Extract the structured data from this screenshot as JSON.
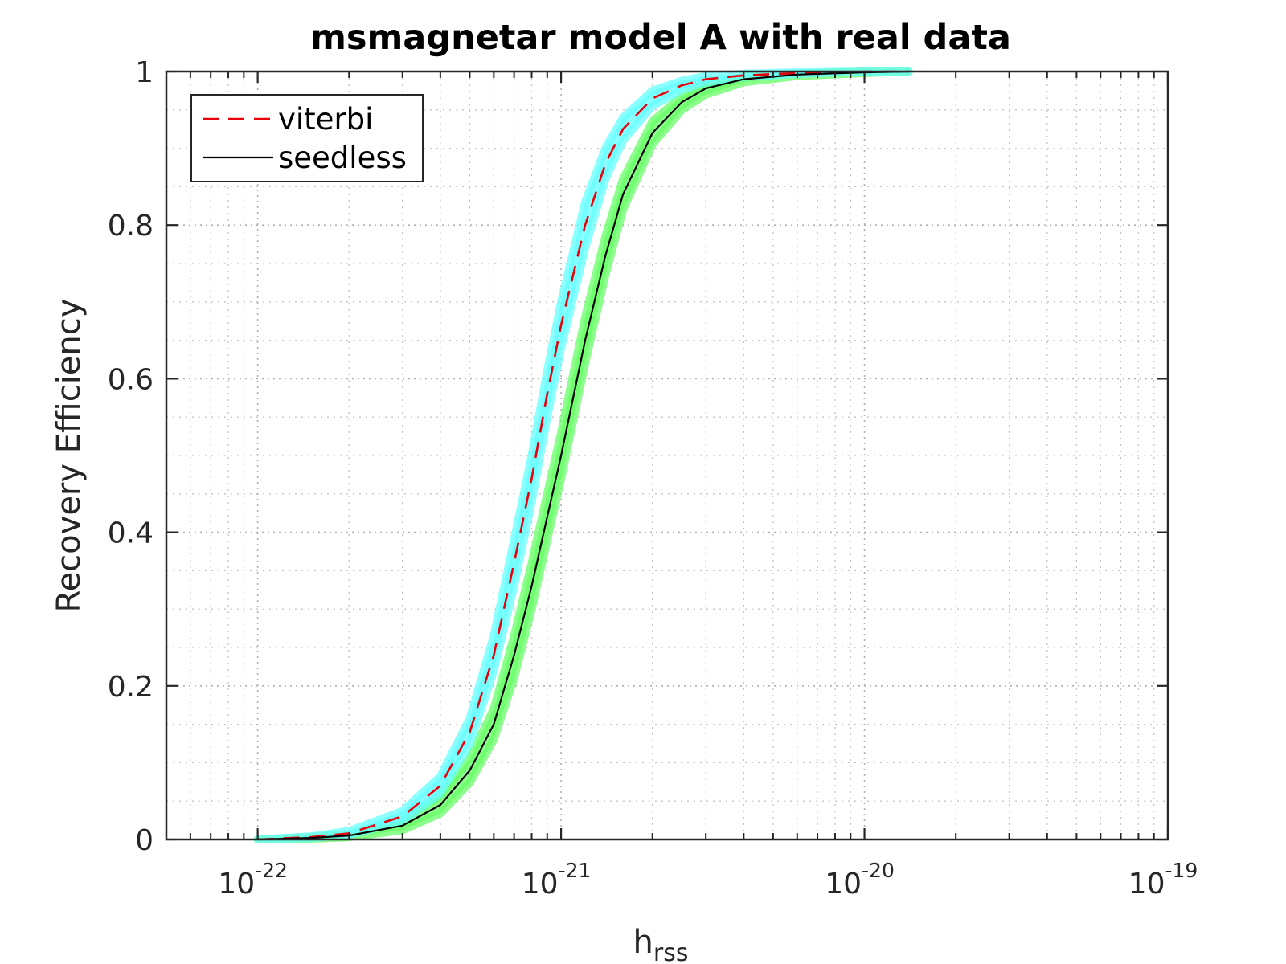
{
  "chart_data": {
    "type": "line",
    "title": "msmagnetar model A with real data",
    "xlabel": {
      "base": "h",
      "subscript": "rss"
    },
    "ylabel": "Recovery Efficiency",
    "x_scale": "log",
    "xlim": [
      5e-23,
      1e-19
    ],
    "ylim": [
      0,
      1
    ],
    "x_ticks": [
      {
        "value": 1e-22,
        "base": "10",
        "exponent": "-22"
      },
      {
        "value": 1e-21,
        "base": "10",
        "exponent": "-21"
      },
      {
        "value": 1e-20,
        "base": "10",
        "exponent": "-20"
      },
      {
        "value": 1e-19,
        "base": "10",
        "exponent": "-19"
      }
    ],
    "y_ticks": [
      {
        "value": 0,
        "label": "0"
      },
      {
        "value": 0.2,
        "label": "0.2"
      },
      {
        "value": 0.4,
        "label": "0.4"
      },
      {
        "value": 0.6,
        "label": "0.6"
      },
      {
        "value": 0.8,
        "label": "0.8"
      },
      {
        "value": 1,
        "label": "1"
      }
    ],
    "grid": true,
    "minor_grid": true,
    "legend_placement": "top-left",
    "series": [
      {
        "name": "viterbi",
        "style": "dashed",
        "color": "#e8000b",
        "band_color": "#66ffff",
        "x": [
          1e-22,
          1.5e-22,
          2e-22,
          3e-22,
          4e-22,
          5e-22,
          6e-22,
          7e-22,
          8e-22,
          9e-22,
          1e-21,
          1.2e-21,
          1.4e-21,
          1.6e-21,
          2e-21,
          2.5e-21,
          3e-21,
          4e-21,
          6e-21,
          1e-20,
          1.4e-20
        ],
        "y": [
          0.0,
          0.003,
          0.008,
          0.03,
          0.07,
          0.14,
          0.24,
          0.36,
          0.47,
          0.58,
          0.67,
          0.8,
          0.88,
          0.925,
          0.965,
          0.982,
          0.99,
          0.995,
          0.998,
          1.0,
          1.0
        ],
        "band_lower": [
          0.0,
          0.002,
          0.006,
          0.024,
          0.06,
          0.125,
          0.22,
          0.33,
          0.44,
          0.55,
          0.64,
          0.77,
          0.86,
          0.91,
          0.955,
          0.976,
          0.986,
          0.993,
          0.997,
          1.0,
          1.0
        ],
        "band_upper": [
          0.0,
          0.004,
          0.011,
          0.037,
          0.082,
          0.158,
          0.265,
          0.39,
          0.5,
          0.61,
          0.7,
          0.83,
          0.9,
          0.94,
          0.975,
          0.988,
          0.994,
          0.997,
          0.999,
          1.0,
          1.0
        ]
      },
      {
        "name": "seedless",
        "style": "solid",
        "color": "#000000",
        "band_color": "#66ff66",
        "x": [
          1e-22,
          1.5e-22,
          2e-22,
          3e-22,
          4e-22,
          5e-22,
          6e-22,
          7e-22,
          8e-22,
          9e-22,
          1e-21,
          1.2e-21,
          1.4e-21,
          1.6e-21,
          2e-21,
          2.5e-21,
          3e-21,
          4e-21,
          6e-21,
          1e-20,
          1.4e-20
        ],
        "y": [
          0.0,
          0.002,
          0.005,
          0.018,
          0.045,
          0.09,
          0.15,
          0.24,
          0.33,
          0.42,
          0.5,
          0.65,
          0.76,
          0.84,
          0.92,
          0.96,
          0.978,
          0.99,
          0.996,
          0.999,
          1.0
        ],
        "band_lower": [
          0.0,
          0.001,
          0.003,
          0.012,
          0.034,
          0.074,
          0.13,
          0.21,
          0.3,
          0.39,
          0.47,
          0.62,
          0.735,
          0.82,
          0.905,
          0.95,
          0.97,
          0.986,
          0.994,
          0.998,
          1.0
        ],
        "band_upper": [
          0.0,
          0.003,
          0.007,
          0.025,
          0.057,
          0.106,
          0.17,
          0.265,
          0.36,
          0.45,
          0.53,
          0.68,
          0.785,
          0.86,
          0.935,
          0.968,
          0.984,
          0.993,
          0.997,
          1.0,
          1.0
        ]
      }
    ]
  }
}
